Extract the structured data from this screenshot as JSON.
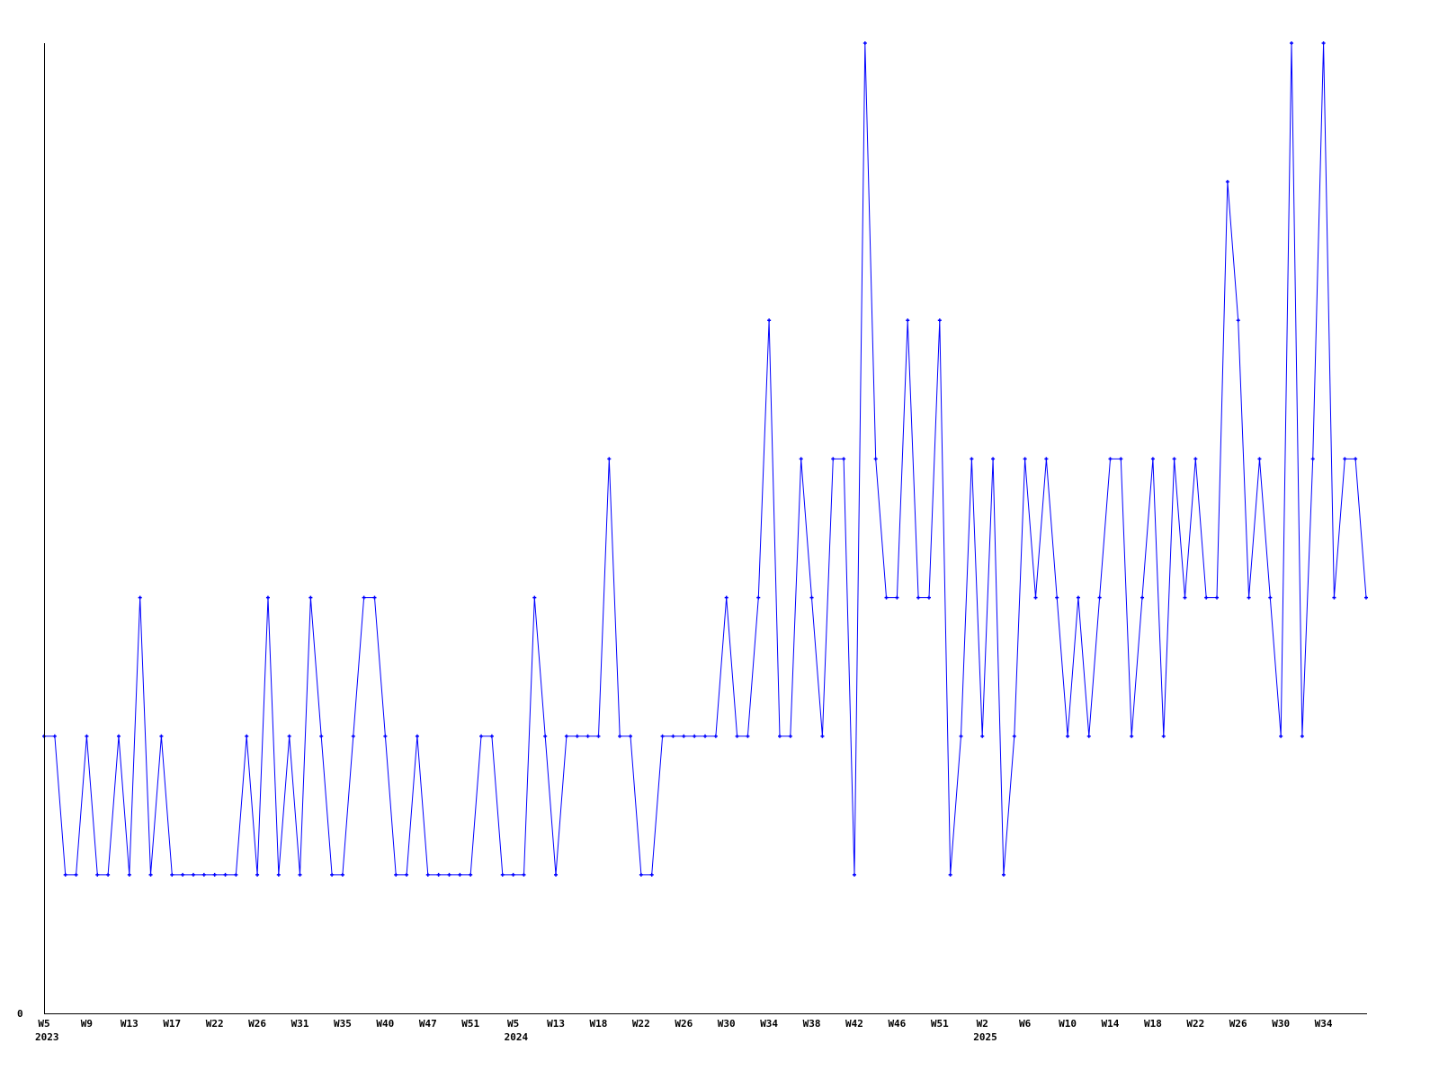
{
  "chart_data": {
    "type": "line",
    "title": "",
    "xlabel": "",
    "ylabel": "",
    "ylim": [
      0,
      7
    ],
    "grid": false,
    "y_tick_labels": [
      "0"
    ],
    "x_tick_labels": [
      {
        "index": 0,
        "week": "W5",
        "year": "2023"
      },
      {
        "index": 4,
        "week": "W9"
      },
      {
        "index": 8,
        "week": "W13"
      },
      {
        "index": 12,
        "week": "W17"
      },
      {
        "index": 16,
        "week": "W22"
      },
      {
        "index": 20,
        "week": "W26"
      },
      {
        "index": 24,
        "week": "W31"
      },
      {
        "index": 28,
        "week": "W35"
      },
      {
        "index": 32,
        "week": "W40"
      },
      {
        "index": 36,
        "week": "W47"
      },
      {
        "index": 40,
        "week": "W51"
      },
      {
        "index": 44,
        "week": "W5",
        "year": "2024"
      },
      {
        "index": 48,
        "week": "W13"
      },
      {
        "index": 52,
        "week": "W18"
      },
      {
        "index": 56,
        "week": "W22"
      },
      {
        "index": 60,
        "week": "W26"
      },
      {
        "index": 64,
        "week": "W30"
      },
      {
        "index": 68,
        "week": "W34"
      },
      {
        "index": 72,
        "week": "W38"
      },
      {
        "index": 76,
        "week": "W42"
      },
      {
        "index": 80,
        "week": "W46"
      },
      {
        "index": 84,
        "week": "W51"
      },
      {
        "index": 88,
        "week": "W2",
        "year": "2025"
      },
      {
        "index": 92,
        "week": "W6"
      },
      {
        "index": 96,
        "week": "W10"
      },
      {
        "index": 100,
        "week": "W14"
      },
      {
        "index": 104,
        "week": "W18"
      },
      {
        "index": 108,
        "week": "W22"
      },
      {
        "index": 112,
        "week": "W26"
      },
      {
        "index": 116,
        "week": "W30"
      },
      {
        "index": 120,
        "week": "W34"
      }
    ],
    "series": [
      {
        "color": "#0000ff",
        "values": [
          2,
          2,
          1,
          1,
          2,
          1,
          1,
          2,
          1,
          3,
          1,
          2,
          1,
          1,
          1,
          1,
          1,
          1,
          1,
          2,
          1,
          3,
          1,
          2,
          1,
          3,
          2,
          1,
          1,
          2,
          3,
          3,
          2,
          1,
          1,
          2,
          1,
          1,
          1,
          1,
          1,
          2,
          2,
          1,
          1,
          1,
          3,
          2,
          1,
          2,
          2,
          2,
          2,
          4,
          2,
          2,
          1,
          1,
          2,
          2,
          2,
          2,
          2,
          2,
          3,
          2,
          2,
          3,
          5,
          2,
          2,
          4,
          3,
          2,
          4,
          4,
          1,
          7,
          4,
          3,
          3,
          5,
          3,
          3,
          5,
          1,
          2,
          4,
          2,
          4,
          1,
          2,
          4,
          3,
          4,
          3,
          2,
          3,
          2,
          3,
          4,
          4,
          2,
          3,
          4,
          2,
          4,
          3,
          4,
          3,
          3,
          6,
          5,
          3,
          4,
          3,
          2,
          7,
          2,
          4,
          7,
          3,
          4,
          4,
          3
        ]
      }
    ]
  }
}
